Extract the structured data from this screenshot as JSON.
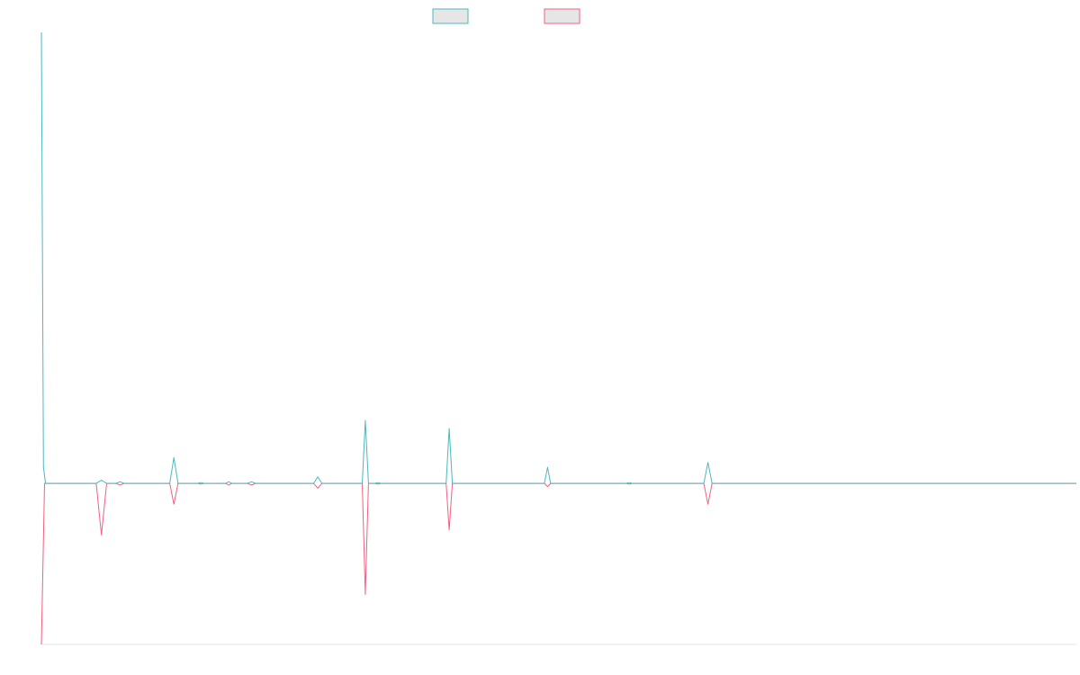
{
  "chart_data": {
    "type": "line",
    "title": "",
    "xlabel": "",
    "ylabel": "",
    "grid": false,
    "legend": "top-center",
    "xlim": [
      0,
      100
    ],
    "ylim": [
      -1,
      2.8
    ],
    "colors": {
      "series_a": "#4bb8c0",
      "series_b": "#f2607f",
      "legend_fill": "#e6e6e6",
      "axis": "#e6e6e6"
    },
    "series": [
      {
        "key": "series_a",
        "points": [
          [
            0,
            2.8
          ],
          [
            0.2,
            0.1
          ],
          [
            0.4,
            0
          ],
          [
            5.3,
            0
          ],
          [
            5.8,
            0.02
          ],
          [
            6.3,
            0
          ],
          [
            7.2,
            0
          ],
          [
            7.6,
            0.01
          ],
          [
            8,
            0
          ],
          [
            12.4,
            0
          ],
          [
            12.8,
            0.16
          ],
          [
            13.2,
            0
          ],
          [
            15.1,
            0
          ],
          [
            15.4,
            0.005
          ],
          [
            15.7,
            0
          ],
          [
            17.8,
            0
          ],
          [
            18.1,
            0.01
          ],
          [
            18.4,
            0
          ],
          [
            19.9,
            0
          ],
          [
            20.3,
            0.01
          ],
          [
            20.7,
            0
          ],
          [
            26.3,
            0
          ],
          [
            26.7,
            0.04
          ],
          [
            27.1,
            0
          ],
          [
            31.0,
            0
          ],
          [
            31.3,
            0.39
          ],
          [
            31.6,
            0
          ],
          [
            32.2,
            0
          ],
          [
            32.5,
            0.005
          ],
          [
            32.8,
            0
          ],
          [
            39.1,
            0
          ],
          [
            39.4,
            0.34
          ],
          [
            39.7,
            0
          ],
          [
            48.6,
            0
          ],
          [
            48.9,
            0.1
          ],
          [
            49.2,
            0
          ],
          [
            56.5,
            0
          ],
          [
            56.8,
            0.005
          ],
          [
            57.1,
            0
          ],
          [
            64.0,
            0
          ],
          [
            64.4,
            0.13
          ],
          [
            64.8,
            0
          ],
          [
            100,
            0
          ]
        ]
      },
      {
        "key": "series_b",
        "points": [
          [
            0,
            -1.0
          ],
          [
            0.3,
            0
          ],
          [
            5.3,
            0
          ],
          [
            5.8,
            -0.32
          ],
          [
            6.3,
            0
          ],
          [
            7.2,
            0
          ],
          [
            7.6,
            -0.01
          ],
          [
            8,
            0
          ],
          [
            12.4,
            0
          ],
          [
            12.8,
            -0.13
          ],
          [
            13.2,
            0
          ],
          [
            15.1,
            0
          ],
          [
            15.4,
            -0.005
          ],
          [
            15.7,
            0
          ],
          [
            17.8,
            0
          ],
          [
            18.1,
            -0.01
          ],
          [
            18.4,
            0
          ],
          [
            19.9,
            0
          ],
          [
            20.3,
            -0.01
          ],
          [
            20.7,
            0
          ],
          [
            26.3,
            0
          ],
          [
            26.7,
            -0.03
          ],
          [
            27.1,
            0
          ],
          [
            31.0,
            0
          ],
          [
            31.3,
            -0.69
          ],
          [
            31.6,
            0
          ],
          [
            32.2,
            0
          ],
          [
            32.5,
            -0.005
          ],
          [
            32.8,
            0
          ],
          [
            39.1,
            0
          ],
          [
            39.4,
            -0.29
          ],
          [
            39.7,
            0
          ],
          [
            48.6,
            0
          ],
          [
            48.9,
            -0.02
          ],
          [
            49.2,
            0
          ],
          [
            56.5,
            0
          ],
          [
            56.8,
            -0.005
          ],
          [
            57.1,
            0
          ],
          [
            64.0,
            0
          ],
          [
            64.4,
            -0.13
          ],
          [
            64.8,
            0
          ],
          [
            100,
            0
          ]
        ]
      }
    ]
  }
}
